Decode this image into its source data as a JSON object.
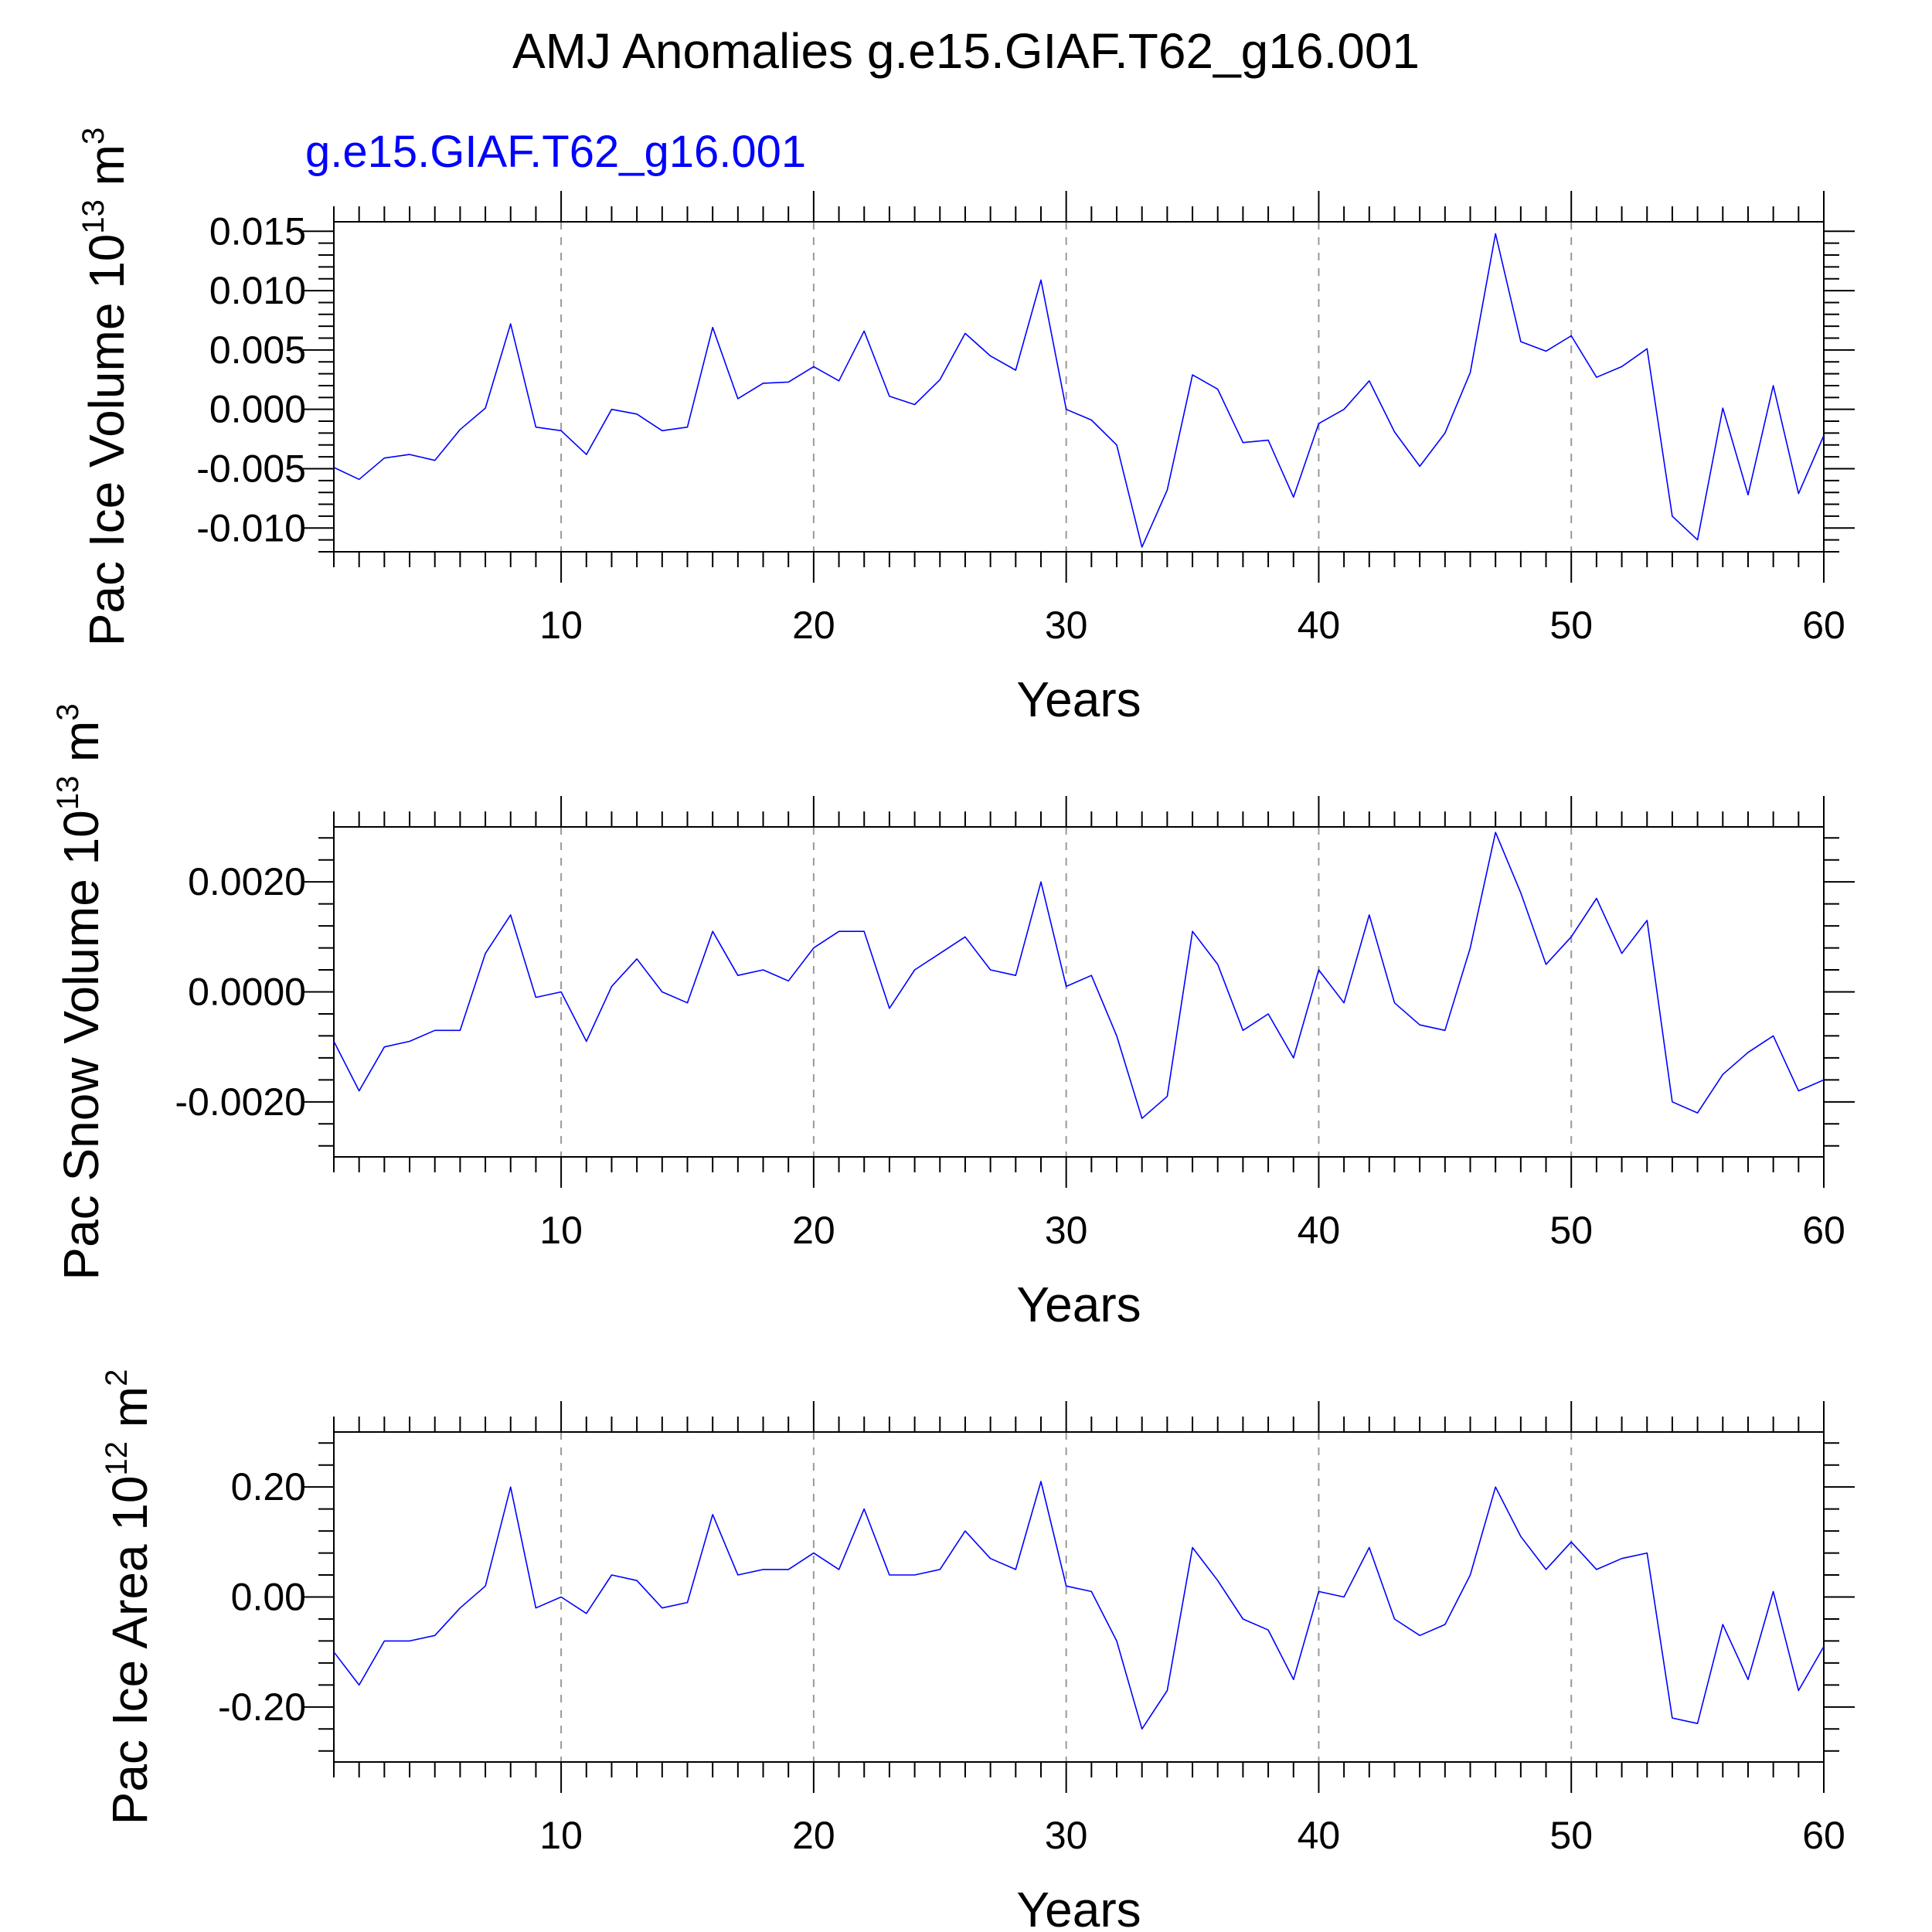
{
  "title": "AMJ Anomalies g.e15.GIAF.T62_g16.001",
  "colors": {
    "series": "#0000ff",
    "axis": "#000000",
    "grid": "#999999",
    "background": "#ffffff"
  },
  "chart_data": [
    {
      "type": "line",
      "subtitle": "g.e15.GIAF.T62_g16.001",
      "ylabel_main": "Pac Ice Volume 10",
      "ylabel_exp": "13",
      "ylabel_unit": "m",
      "ylabel_unit_exp": "3",
      "xlabel": "Years",
      "xlim": [
        1,
        60
      ],
      "ylim": [
        -0.012,
        0.0158
      ],
      "xticks": [
        10,
        20,
        30,
        40,
        50,
        60
      ],
      "xtick_labels": [
        "10",
        "20",
        "30",
        "40",
        "50",
        "60"
      ],
      "yticks": [
        -0.01,
        -0.005,
        0.0,
        0.005,
        0.01,
        0.015
      ],
      "ytick_labels": [
        "-0.010",
        "-0.005",
        "0.000",
        "0.005",
        "0.010",
        "0.015"
      ],
      "grid": "x-dashed",
      "series": [
        {
          "color": "#0000ff",
          "x": [
            1,
            2,
            3,
            4,
            5,
            6,
            7,
            8,
            9,
            10,
            11,
            12,
            13,
            14,
            15,
            16,
            17,
            18,
            19,
            20,
            21,
            22,
            23,
            24,
            25,
            26,
            27,
            28,
            29,
            30,
            31,
            32,
            33,
            34,
            35,
            36,
            37,
            38,
            39,
            40,
            41,
            42,
            43,
            44,
            45,
            46,
            47,
            48,
            49,
            50,
            51,
            52,
            53,
            54,
            55,
            56,
            57,
            58,
            59,
            60
          ],
          "y": [
            -0.0049,
            -0.0059,
            -0.0041,
            -0.0038,
            -0.0043,
            -0.0017,
            0.0001,
            0.0072,
            -0.0015,
            -0.0018,
            -0.0038,
            0.0,
            -0.0004,
            -0.0018,
            -0.0015,
            0.0069,
            0.0009,
            0.0022,
            0.0023,
            0.0036,
            0.0024,
            0.0066,
            0.0011,
            0.0004,
            0.0025,
            0.0064,
            0.0045,
            0.0033,
            0.0109,
            0.0,
            -0.0009,
            -0.003,
            -0.0116,
            -0.0068,
            0.0029,
            0.0017,
            -0.0028,
            -0.0026,
            -0.0074,
            -0.0012,
            0.0,
            0.0024,
            -0.0019,
            -0.0048,
            -0.002,
            0.0031,
            0.0148,
            0.0057,
            0.0049,
            0.0062,
            0.0027,
            0.0036,
            0.0051,
            -0.009,
            -0.011,
            0.0001,
            -0.0072,
            0.002,
            -0.0071,
            -0.0022
          ]
        }
      ]
    },
    {
      "type": "line",
      "ylabel_main": "Pac Snow Volume 10",
      "ylabel_exp": "13",
      "ylabel_unit": "m",
      "ylabel_unit_exp": "3",
      "xlabel": "Years",
      "xlim": [
        1,
        60
      ],
      "ylim": [
        -0.003,
        0.003
      ],
      "xticks": [
        10,
        20,
        30,
        40,
        50,
        60
      ],
      "xtick_labels": [
        "10",
        "20",
        "30",
        "40",
        "50",
        "60"
      ],
      "yticks": [
        -0.002,
        0.0,
        0.002
      ],
      "ytick_labels": [
        "-0.0020",
        "0.0000",
        "0.0020"
      ],
      "grid": "x-dashed",
      "series": [
        {
          "color": "#0000ff",
          "x": [
            1,
            2,
            3,
            4,
            5,
            6,
            7,
            8,
            9,
            10,
            11,
            12,
            13,
            14,
            15,
            16,
            17,
            18,
            19,
            20,
            21,
            22,
            23,
            24,
            25,
            26,
            27,
            28,
            29,
            30,
            31,
            32,
            33,
            34,
            35,
            36,
            37,
            38,
            39,
            40,
            41,
            42,
            43,
            44,
            45,
            46,
            47,
            48,
            49,
            50,
            51,
            52,
            53,
            54,
            55,
            56,
            57,
            58,
            59,
            60
          ],
          "y": [
            -0.0009,
            -0.0018,
            -0.001,
            -0.0009,
            -0.0007,
            -0.0007,
            0.0007,
            0.0014,
            -0.0001,
            0.0,
            -0.0009,
            0.0001,
            0.0006,
            0.0,
            -0.0002,
            0.0011,
            0.0003,
            0.0004,
            0.0002,
            0.0008,
            0.0011,
            0.0011,
            -0.0003,
            0.0004,
            0.0007,
            0.001,
            0.0004,
            0.0003,
            0.002,
            0.0001,
            0.0003,
            -0.0008,
            -0.0023,
            -0.0019,
            0.0011,
            0.0005,
            -0.0007,
            -0.0004,
            -0.0012,
            0.0004,
            -0.0002,
            0.0014,
            -0.0002,
            -0.0006,
            -0.0007,
            0.0008,
            0.0029,
            0.0018,
            0.0005,
            0.001,
            0.0017,
            0.0007,
            0.0013,
            -0.002,
            -0.0022,
            -0.0015,
            -0.0011,
            -0.0008,
            -0.0018,
            -0.0016
          ]
        }
      ]
    },
    {
      "type": "line",
      "ylabel_main": "Pac Ice Area 10",
      "ylabel_exp": "12",
      "ylabel_unit": "m",
      "ylabel_unit_exp": "2",
      "xlabel": "Years",
      "xlim": [
        1,
        60
      ],
      "ylim": [
        -0.3,
        0.3
      ],
      "xticks": [
        10,
        20,
        30,
        40,
        50,
        60
      ],
      "xtick_labels": [
        "10",
        "20",
        "30",
        "40",
        "50",
        "60"
      ],
      "yticks": [
        -0.2,
        0.0,
        0.2
      ],
      "ytick_labels": [
        "-0.20",
        "0.00",
        "0.20"
      ],
      "grid": "x-dashed",
      "series": [
        {
          "color": "#0000ff",
          "x": [
            1,
            2,
            3,
            4,
            5,
            6,
            7,
            8,
            9,
            10,
            11,
            12,
            13,
            14,
            15,
            16,
            17,
            18,
            19,
            20,
            21,
            22,
            23,
            24,
            25,
            26,
            27,
            28,
            29,
            30,
            31,
            32,
            33,
            34,
            35,
            36,
            37,
            38,
            39,
            40,
            41,
            42,
            43,
            44,
            45,
            46,
            47,
            48,
            49,
            50,
            51,
            52,
            53,
            54,
            55,
            56,
            57,
            58,
            59,
            60
          ],
          "y": [
            -0.1,
            -0.16,
            -0.08,
            -0.08,
            -0.07,
            -0.02,
            0.02,
            0.2,
            -0.02,
            0.0,
            -0.03,
            0.04,
            0.03,
            -0.02,
            -0.01,
            0.15,
            0.04,
            0.05,
            0.05,
            0.08,
            0.05,
            0.16,
            0.04,
            0.04,
            0.05,
            0.12,
            0.07,
            0.05,
            0.21,
            0.02,
            0.01,
            -0.08,
            -0.24,
            -0.17,
            0.09,
            0.03,
            -0.04,
            -0.06,
            -0.15,
            0.01,
            0.0,
            0.09,
            -0.04,
            -0.07,
            -0.05,
            0.04,
            0.2,
            0.11,
            0.05,
            0.1,
            0.05,
            0.07,
            0.08,
            -0.22,
            -0.23,
            -0.05,
            -0.15,
            0.01,
            -0.17,
            -0.09
          ]
        }
      ]
    }
  ]
}
